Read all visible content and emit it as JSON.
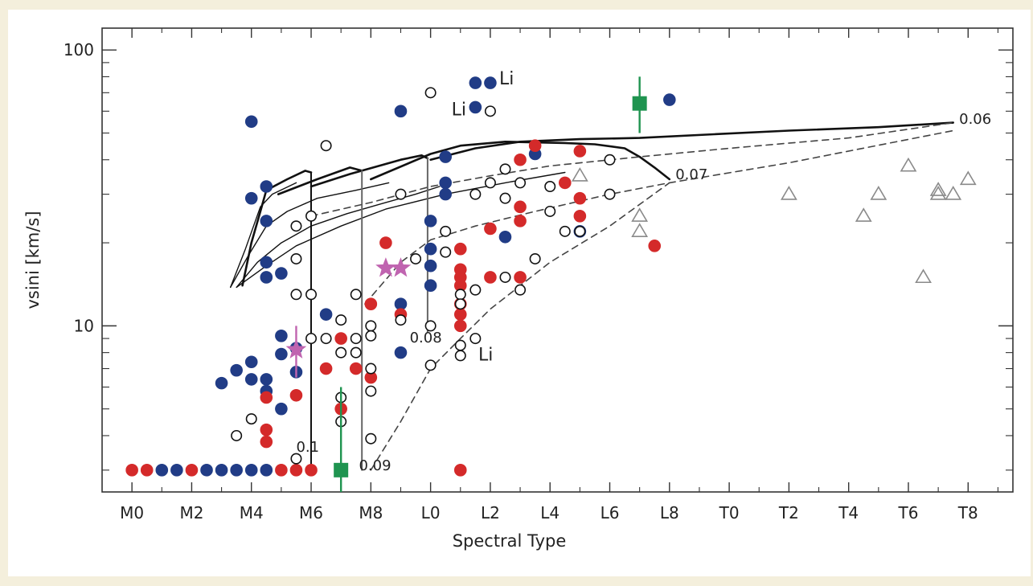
{
  "chart_data": {
    "type": "scatter",
    "xlabel": "Spectral Type",
    "ylabel": "vsini [km/s]",
    "y_scale": "log",
    "ylim": [
      2.5,
      120
    ],
    "xlim": [
      "M-1 (just left of M0)",
      "T9.5"
    ],
    "x_ticks": [
      "M0",
      "M2",
      "M4",
      "M6",
      "M8",
      "L0",
      "L2",
      "L4",
      "L6",
      "L8",
      "T0",
      "T2",
      "T4",
      "T6",
      "T8"
    ],
    "y_ticks": [
      "10",
      "100"
    ],
    "colors": {
      "blue": "#213c86",
      "red": "#d42a2a",
      "green": "#1f9450",
      "magenta": "#c064b0",
      "gray_triangle": "#8a8a8a",
      "open_circle": "#111111"
    },
    "annotations": [
      {
        "text": "Li",
        "x": "L2.3",
        "y": 75
      },
      {
        "text": "Li",
        "x": "L0.7",
        "y": 58
      },
      {
        "text": "Li",
        "x": "L1.6",
        "y": 7.5
      },
      {
        "text": "0.06",
        "x": "T7.7",
        "y": 54
      },
      {
        "text": "0.07",
        "x": "L8.2",
        "y": 34
      },
      {
        "text": "0.08",
        "x": "M9.3",
        "y": 8.7
      },
      {
        "text": "0.1",
        "x": "M5.5",
        "y": 3.5
      },
      {
        "text": "0.09",
        "x": "M7.6",
        "y": 3.0
      }
    ],
    "series": [
      {
        "name": "blue filled",
        "marker": "circle",
        "points": [
          {
            "x": "M4",
            "y": 55
          },
          {
            "x": "M4",
            "y": 29
          },
          {
            "x": "M4.5",
            "y": 32
          },
          {
            "x": "M4.5",
            "y": 24
          },
          {
            "x": "M4.5",
            "y": 17
          },
          {
            "x": "M4.5",
            "y": 15
          },
          {
            "x": "M5",
            "y": 15.5
          },
          {
            "x": "M3",
            "y": 6.2
          },
          {
            "x": "M3.5",
            "y": 6.9
          },
          {
            "x": "M4",
            "y": 7.4
          },
          {
            "x": "M4",
            "y": 6.4
          },
          {
            "x": "M4.5",
            "y": 6.4
          },
          {
            "x": "M4.5",
            "y": 5.8
          },
          {
            "x": "M5",
            "y": 9.2
          },
          {
            "x": "M5",
            "y": 7.9
          },
          {
            "x": "M5",
            "y": 5.0
          },
          {
            "x": "M5.5",
            "y": 8.3
          },
          {
            "x": "M5.5",
            "y": 6.8
          },
          {
            "x": "M6.5",
            "y": 11
          },
          {
            "x": "M9",
            "y": 60
          },
          {
            "x": "M9",
            "y": 12
          },
          {
            "x": "M9",
            "y": 8.0
          },
          {
            "x": "L0",
            "y": 24
          },
          {
            "x": "L0",
            "y": 19
          },
          {
            "x": "L0",
            "y": 16.5
          },
          {
            "x": "L0",
            "y": 14
          },
          {
            "x": "L0.5",
            "y": 41
          },
          {
            "x": "L0.5",
            "y": 33
          },
          {
            "x": "L0.5",
            "y": 30
          },
          {
            "x": "L1.5",
            "y": 76
          },
          {
            "x": "L2",
            "y": 76
          },
          {
            "x": "L1.5",
            "y": 62
          },
          {
            "x": "L2.5",
            "y": 21
          },
          {
            "x": "L3.5",
            "y": 42
          },
          {
            "x": "L5",
            "y": 22
          },
          {
            "x": "L8",
            "y": 66
          },
          {
            "x": "M1",
            "y": 3.0
          },
          {
            "x": "M1.5",
            "y": 3.0
          },
          {
            "x": "M2.5",
            "y": 3.0
          },
          {
            "x": "M3",
            "y": 3.0
          },
          {
            "x": "M3.5",
            "y": 3.0
          },
          {
            "x": "M4",
            "y": 3.0
          },
          {
            "x": "M4.5",
            "y": 3.0
          }
        ]
      },
      {
        "name": "red filled",
        "marker": "circle",
        "points": [
          {
            "x": "M4.5",
            "y": 5.5
          },
          {
            "x": "M4.5",
            "y": 4.2
          },
          {
            "x": "M4.5",
            "y": 3.8
          },
          {
            "x": "M5.5",
            "y": 5.6
          },
          {
            "x": "M6.5",
            "y": 7.0
          },
          {
            "x": "M7",
            "y": 9.0
          },
          {
            "x": "M7",
            "y": 5.0
          },
          {
            "x": "M7.5",
            "y": 7.0
          },
          {
            "x": "M8",
            "y": 12
          },
          {
            "x": "M8",
            "y": 6.5
          },
          {
            "x": "M8.5",
            "y": 20
          },
          {
            "x": "M9",
            "y": 11
          },
          {
            "x": "L1",
            "y": 19
          },
          {
            "x": "L1",
            "y": 16
          },
          {
            "x": "L1",
            "y": 15
          },
          {
            "x": "L1",
            "y": 14
          },
          {
            "x": "L1",
            "y": 12
          },
          {
            "x": "L1",
            "y": 11
          },
          {
            "x": "L1",
            "y": 10
          },
          {
            "x": "L1",
            "y": 3.0
          },
          {
            "x": "L2",
            "y": 22.5
          },
          {
            "x": "L2",
            "y": 15
          },
          {
            "x": "L3",
            "y": 40
          },
          {
            "x": "L3",
            "y": 27
          },
          {
            "x": "L3",
            "y": 24
          },
          {
            "x": "L3",
            "y": 15
          },
          {
            "x": "L3.5",
            "y": 45
          },
          {
            "x": "L4.5",
            "y": 33
          },
          {
            "x": "L5",
            "y": 43
          },
          {
            "x": "L5",
            "y": 29
          },
          {
            "x": "L5",
            "y": 25
          },
          {
            "x": "L7.5",
            "y": 19.5
          },
          {
            "x": "M0",
            "y": 3.0
          },
          {
            "x": "M0.5",
            "y": 3.0
          },
          {
            "x": "M2",
            "y": 3.0
          },
          {
            "x": "M5",
            "y": 3.0
          },
          {
            "x": "M5.5",
            "y": 3.0
          },
          {
            "x": "M6",
            "y": 3.0
          }
        ]
      },
      {
        "name": "open circles",
        "marker": "open-circle",
        "points": [
          {
            "x": "M6.5",
            "y": 45
          },
          {
            "x": "L0",
            "y": 70
          },
          {
            "x": "L2",
            "y": 60
          },
          {
            "x": "M5.5",
            "y": 23
          },
          {
            "x": "M5.5",
            "y": 17.5
          },
          {
            "x": "M5.5",
            "y": 13
          },
          {
            "x": "M6",
            "y": 25
          },
          {
            "x": "M6",
            "y": 13
          },
          {
            "x": "M6",
            "y": 9
          },
          {
            "x": "M6.5",
            "y": 9
          },
          {
            "x": "M7",
            "y": 10.5
          },
          {
            "x": "M7",
            "y": 8
          },
          {
            "x": "M7",
            "y": 5.5
          },
          {
            "x": "M7",
            "y": 4.5
          },
          {
            "x": "M7.5",
            "y": 9.0
          },
          {
            "x": "M7.5",
            "y": 8
          },
          {
            "x": "M7.5",
            "y": 13
          },
          {
            "x": "M8",
            "y": 10
          },
          {
            "x": "M8",
            "y": 9.2
          },
          {
            "x": "M8",
            "y": 7
          },
          {
            "x": "M8",
            "y": 5.8
          },
          {
            "x": "M8",
            "y": 3.9
          },
          {
            "x": "M9",
            "y": 30
          },
          {
            "x": "M9",
            "y": 10.5
          },
          {
            "x": "M9.5",
            "y": 17.5
          },
          {
            "x": "L0",
            "y": 10
          },
          {
            "x": "L0",
            "y": 7.2
          },
          {
            "x": "L0.5",
            "y": 22
          },
          {
            "x": "L0.5",
            "y": 18.5
          },
          {
            "x": "L1",
            "y": 13
          },
          {
            "x": "L1",
            "y": 12
          },
          {
            "x": "L1",
            "y": 8.5
          },
          {
            "x": "L1",
            "y": 7.8
          },
          {
            "x": "L1.5",
            "y": 30
          },
          {
            "x": "L1.5",
            "y": 13.5
          },
          {
            "x": "L1.5",
            "y": 9.0
          },
          {
            "x": "L2",
            "y": 33
          },
          {
            "x": "L2.5",
            "y": 37
          },
          {
            "x": "L2.5",
            "y": 29
          },
          {
            "x": "L2.5",
            "y": 15
          },
          {
            "x": "L3",
            "y": 33
          },
          {
            "x": "L3",
            "y": 13.5
          },
          {
            "x": "L3.5",
            "y": 17.5
          },
          {
            "x": "L4",
            "y": 32
          },
          {
            "x": "L4",
            "y": 26
          },
          {
            "x": "L4.5",
            "y": 22
          },
          {
            "x": "L5",
            "y": 22
          },
          {
            "x": "L6",
            "y": 40
          },
          {
            "x": "L6",
            "y": 30
          },
          {
            "x": "M3.5",
            "y": 4
          },
          {
            "x": "M4",
            "y": 4.6
          },
          {
            "x": "M5.5",
            "y": 3.3
          }
        ]
      },
      {
        "name": "gray triangles",
        "marker": "open-triangle",
        "points": [
          {
            "x": "L7",
            "y": 25
          },
          {
            "x": "L7",
            "y": 22
          },
          {
            "x": "T2",
            "y": 30
          },
          {
            "x": "T4.5",
            "y": 25
          },
          {
            "x": "T5",
            "y": 30
          },
          {
            "x": "T6",
            "y": 38
          },
          {
            "x": "T6.5",
            "y": 15
          },
          {
            "x": "T7",
            "y": 30
          },
          {
            "x": "T7",
            "y": 31
          },
          {
            "x": "T7.5",
            "y": 30
          },
          {
            "x": "T8",
            "y": 34
          },
          {
            "x": "L5",
            "y": 35
          }
        ]
      },
      {
        "name": "green squares",
        "marker": "square-errorbar",
        "points": [
          {
            "x": "M7",
            "y": 3.0,
            "y_low": 2.5,
            "y_high": 6.0
          },
          {
            "x": "L7",
            "y": 64,
            "y_low": 50,
            "y_high": 80
          }
        ]
      },
      {
        "name": "magenta stars",
        "marker": "star",
        "points": [
          {
            "x": "M5.5",
            "y": 8.2,
            "y_low": 6.5,
            "y_high": 10
          },
          {
            "x": "M8.5",
            "y": 16.2
          },
          {
            "x": "M9",
            "y": 16.2
          }
        ]
      }
    ]
  }
}
